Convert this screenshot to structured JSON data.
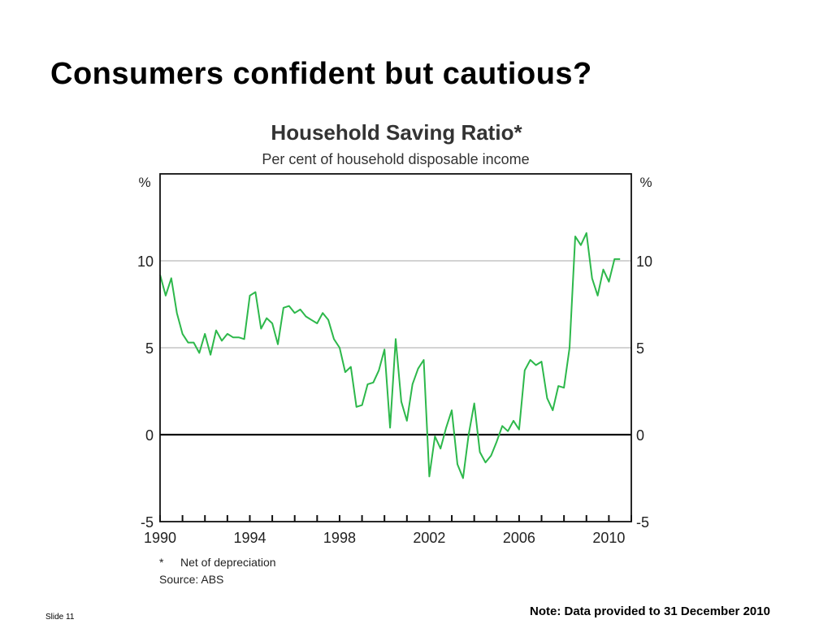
{
  "slide": {
    "title": "Consumers confident but cautious?",
    "slide_number": "Slide 11",
    "note": "Note: Data provided to 31 December 2010"
  },
  "chart_data": {
    "type": "line",
    "title": "Household Saving Ratio*",
    "subtitle": "Per cent of household disposable income",
    "ylabel_left": "%",
    "ylabel_right": "%",
    "ylim": [
      -5,
      15
    ],
    "xlim": [
      1990,
      2011
    ],
    "yticks": [
      -5,
      0,
      5,
      10
    ],
    "xticks": [
      "1990",
      "1994",
      "1998",
      "2002",
      "2006",
      "2010"
    ],
    "grid": true,
    "line_color": "#2db84b",
    "footnotes": [
      "*",
      "Net of depreciation",
      "Source: ABS"
    ],
    "series": [
      {
        "x": [
          1990.0,
          1990.25,
          1990.5,
          1990.75,
          1991.0,
          1991.25,
          1991.5,
          1991.75,
          1992.0,
          1992.25,
          1992.5,
          1992.75,
          1993.0,
          1993.25,
          1993.5,
          1993.75,
          1994.0,
          1994.25,
          1994.5,
          1994.75,
          1995.0,
          1995.25,
          1995.5,
          1995.75,
          1996.0,
          1996.25,
          1996.5,
          1996.75,
          1997.0,
          1997.25,
          1997.5,
          1997.75,
          1998.0,
          1998.25,
          1998.5,
          1998.75,
          1999.0,
          1999.25,
          1999.5,
          1999.75,
          2000.0,
          2000.25,
          2000.5,
          2000.75,
          2001.0,
          2001.25,
          2001.5,
          2001.75,
          2002.0,
          2002.25,
          2002.5,
          2002.75,
          2003.0,
          2003.25,
          2003.5,
          2003.75,
          2004.0,
          2004.25,
          2004.5,
          2004.75,
          2005.0,
          2005.25,
          2005.5,
          2005.75,
          2006.0,
          2006.25,
          2006.5,
          2006.75,
          2007.0,
          2007.25,
          2007.5,
          2007.75,
          2008.0,
          2008.25,
          2008.5,
          2008.75,
          2009.0,
          2009.25,
          2009.5,
          2009.75,
          2010.0,
          2010.25,
          2010.5
        ],
        "values": [
          9.2,
          8.0,
          9.0,
          7.0,
          5.8,
          5.3,
          5.3,
          4.7,
          5.8,
          4.6,
          6.0,
          5.4,
          5.8,
          5.6,
          5.6,
          5.5,
          8.0,
          8.2,
          6.1,
          6.7,
          6.4,
          5.2,
          7.3,
          7.4,
          7.0,
          7.2,
          6.8,
          6.6,
          6.4,
          7.0,
          6.6,
          5.5,
          5.0,
          3.6,
          3.9,
          1.6,
          1.7,
          2.9,
          3.0,
          3.7,
          4.9,
          0.4,
          5.5,
          1.9,
          0.8,
          2.9,
          3.8,
          4.3,
          -2.4,
          -0.1,
          -0.8,
          0.4,
          1.4,
          -1.7,
          -2.5,
          0.0,
          1.8,
          -1.0,
          -1.6,
          -1.2,
          -0.4,
          0.5,
          0.2,
          0.8,
          0.3,
          3.7,
          4.3,
          4.0,
          4.2,
          2.1,
          1.4,
          2.8,
          2.7,
          5.0,
          11.4,
          10.9,
          11.6,
          9.0,
          8.0,
          9.5,
          8.8,
          10.1,
          10.1
        ]
      }
    ]
  }
}
